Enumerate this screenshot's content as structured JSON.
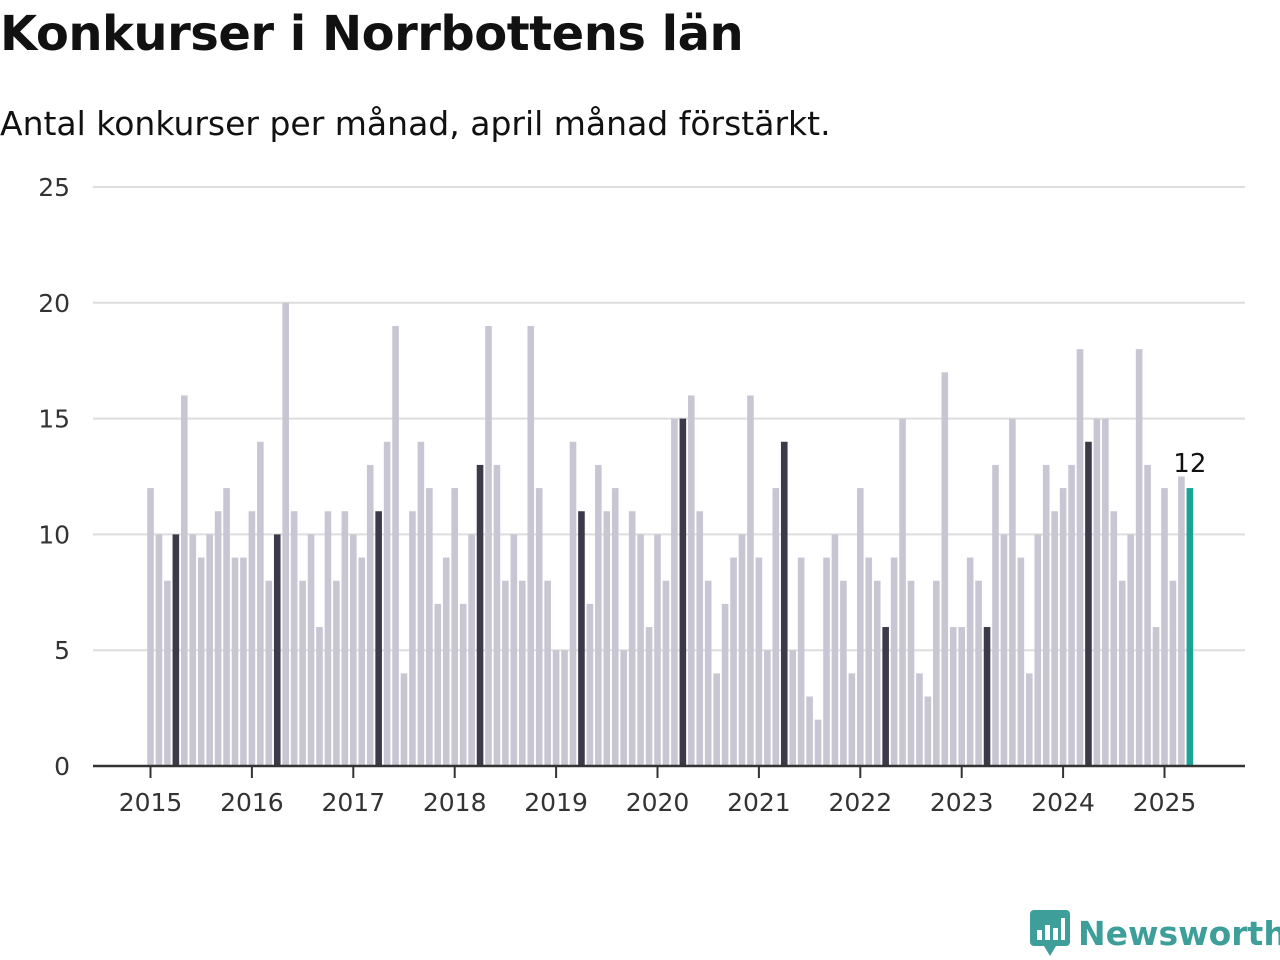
{
  "header": {
    "title": "Konkurser i Norrbottens län",
    "subtitle": "Antal konkurser per månad, april månad förstärkt."
  },
  "brand": {
    "name": "Newsworthy",
    "icon": "newsworthy-bar-chart-icon",
    "color": "#3d9e9a"
  },
  "colors": {
    "bar": "#c8c6d3",
    "highlight": "#3b3a4a",
    "current": "#1aa393",
    "grid": "#dddddd",
    "axis": "#333333"
  },
  "chart_data": {
    "type": "bar",
    "title": "Konkurser i Norrbottens län",
    "subtitle": "Antal konkurser per månad, april månad förstärkt.",
    "xlabel": "",
    "ylabel": "",
    "ylim": [
      0,
      25
    ],
    "yticks": [
      0,
      5,
      10,
      15,
      20,
      25
    ],
    "xticks": [
      "2015",
      "2016",
      "2017",
      "2018",
      "2019",
      "2020",
      "2021",
      "2022",
      "2023",
      "2024",
      "2025"
    ],
    "grid": true,
    "start": "2015-01",
    "end": "2025-04",
    "highlight_month": "april",
    "series": [
      {
        "values": [
          12,
          10,
          8,
          10,
          16,
          10,
          9,
          10,
          11,
          12,
          9,
          9,
          11,
          14,
          8,
          10,
          20,
          11,
          8,
          10,
          6,
          11,
          8,
          11,
          10,
          9,
          13,
          11,
          14,
          19,
          4,
          11,
          14,
          12,
          7,
          9,
          12,
          7,
          10,
          13,
          19,
          13,
          8,
          10,
          8,
          19,
          12,
          8,
          5,
          5,
          14,
          11,
          7,
          13,
          11,
          12,
          5,
          11,
          10,
          6,
          10,
          8,
          15,
          15,
          16,
          11,
          8,
          4,
          7,
          9,
          10,
          16,
          9,
          5,
          12,
          14,
          5,
          9,
          3,
          2,
          9,
          10,
          8,
          4,
          12,
          9,
          8,
          6,
          9,
          15,
          8,
          4,
          3,
          8,
          17,
          6,
          6,
          9,
          8,
          6,
          13,
          10,
          15,
          9,
          4,
          10,
          13,
          11,
          12,
          13,
          18,
          14,
          15,
          15,
          11,
          8,
          10,
          18,
          13,
          6,
          12,
          8,
          12.5,
          12
        ]
      }
    ],
    "annotations": [
      {
        "x": "2025-04",
        "text": "12"
      }
    ]
  }
}
